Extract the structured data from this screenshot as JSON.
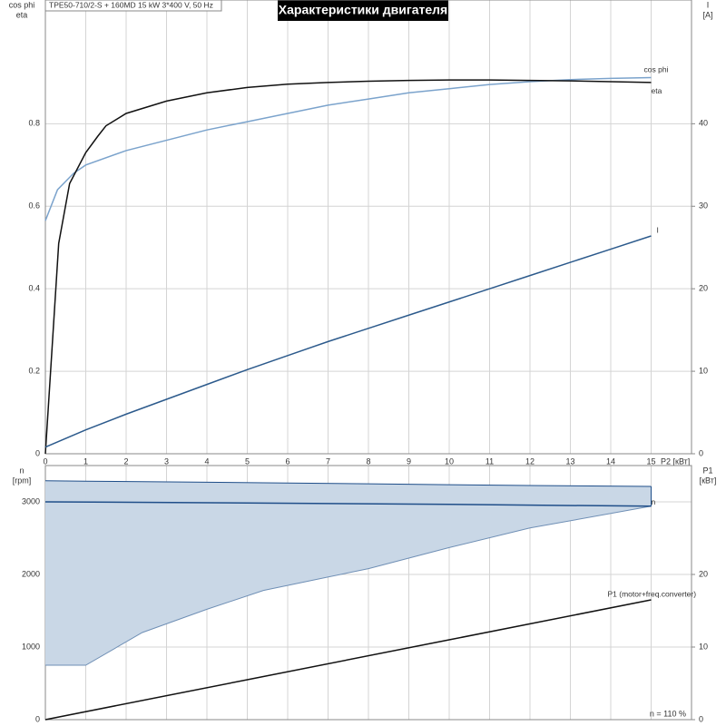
{
  "chart_data": [
    {
      "type": "line",
      "title": "Характеристики двигателя",
      "subtitle": "TPE50-710/2-S + 160MD  15 kW  3*400 V, 50 Hz",
      "xlabel": "P2 [кВт]",
      "ylabel": [
        "cos phi",
        "eta"
      ],
      "y2label": [
        "I",
        "[A]"
      ],
      "xlim": [
        0,
        16
      ],
      "xticks": [
        0,
        1,
        2,
        3,
        4,
        5,
        6,
        7,
        8,
        9,
        10,
        11,
        12,
        13,
        14,
        15
      ],
      "ylim": [
        0,
        1.1
      ],
      "yticks": [
        0,
        0.2,
        0.4,
        0.6,
        0.8
      ],
      "y2lim": [
        0,
        55
      ],
      "y2ticks": [
        0,
        10,
        20,
        30,
        40
      ],
      "grid": true,
      "series": [
        {
          "name": "cos phi",
          "color": "#7ba3cc",
          "x": [
            0,
            0.3,
            0.7,
            1,
            2,
            3,
            4,
            5,
            6,
            7,
            8,
            9,
            10,
            11,
            12,
            13,
            14,
            15
          ],
          "values": [
            0.565,
            0.64,
            0.68,
            0.7,
            0.735,
            0.76,
            0.785,
            0.805,
            0.825,
            0.845,
            0.86,
            0.875,
            0.885,
            0.895,
            0.902,
            0.907,
            0.91,
            0.912
          ]
        },
        {
          "name": "eta",
          "color": "#111111",
          "x": [
            0,
            0.33,
            0.6,
            1,
            1.3,
            1.5,
            2,
            3,
            4,
            5,
            6,
            7,
            8,
            9,
            10,
            11,
            12,
            13,
            14,
            15
          ],
          "values": [
            0,
            0.51,
            0.655,
            0.73,
            0.77,
            0.795,
            0.825,
            0.855,
            0.875,
            0.888,
            0.896,
            0.9,
            0.903,
            0.905,
            0.906,
            0.906,
            0.905,
            0.904,
            0.902,
            0.9
          ]
        },
        {
          "name": "I",
          "color": "#2c5a8c",
          "axis": "y2",
          "x": [
            0,
            1,
            2,
            3,
            4,
            5,
            6,
            7,
            8,
            9,
            10,
            11,
            12,
            13,
            14,
            15
          ],
          "values": [
            0.8,
            2.9,
            4.8,
            6.6,
            8.4,
            10.2,
            11.9,
            13.6,
            15.2,
            16.8,
            18.4,
            20,
            21.6,
            23.2,
            24.8,
            26.4
          ]
        }
      ]
    },
    {
      "type": "line",
      "ylabel": [
        "n",
        "[rpm]"
      ],
      "y2label": [
        "P1",
        "[кВт]"
      ],
      "annotation": "n = 110 %",
      "xlim": [
        0,
        16
      ],
      "ylim": [
        0,
        3500
      ],
      "yticks": [
        0,
        1000,
        2000,
        3000
      ],
      "y2lim": [
        0,
        35
      ],
      "y2ticks": [
        0,
        10,
        20
      ],
      "grid": true,
      "band": {
        "color": "#c9d7e6",
        "x": [
          0,
          1,
          2.4,
          4,
          5.4,
          8,
          10,
          12,
          15
        ],
        "upper": [
          3290,
          3285,
          3278,
          3270,
          3262,
          3248,
          3236,
          3225,
          3212
        ],
        "lower": [
          750,
          750,
          1200,
          1520,
          1780,
          2080,
          2370,
          2640,
          2940
        ]
      },
      "series": [
        {
          "name": "n",
          "color": "#1f4e89",
          "x": [
            0,
            5,
            10,
            15
          ],
          "values": [
            3000,
            2985,
            2965,
            2940
          ]
        },
        {
          "name": "P1 (motor+freq.converter)",
          "color": "#111111",
          "axis": "y2",
          "x": [
            0,
            5,
            10,
            15
          ],
          "values": [
            0,
            5.5,
            11,
            16.5
          ]
        }
      ]
    }
  ]
}
